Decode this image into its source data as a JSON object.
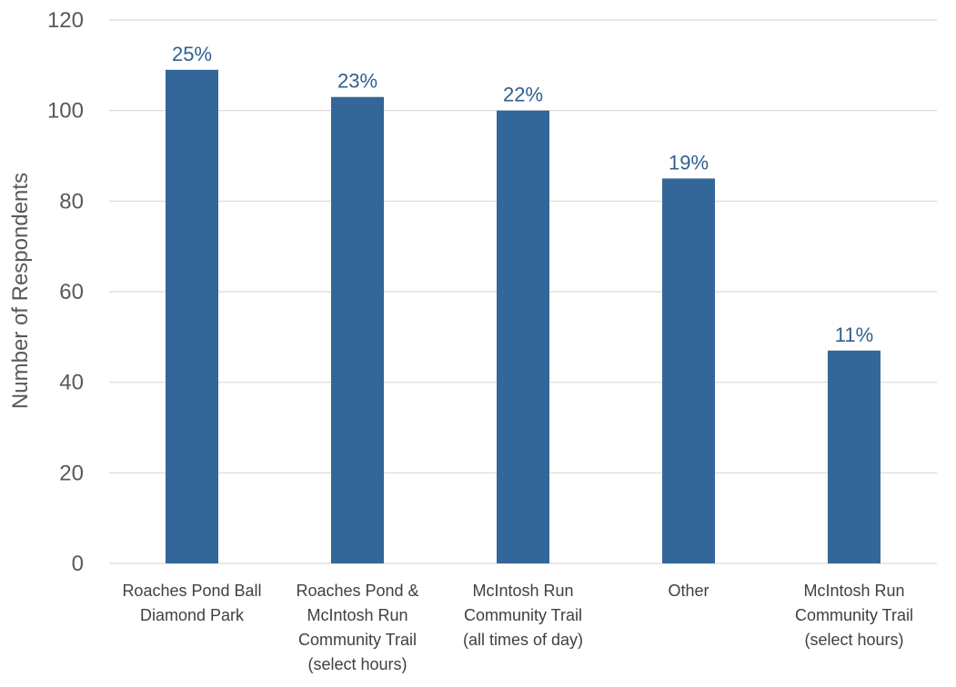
{
  "chart_data": {
    "type": "bar",
    "title": "",
    "xlabel": "",
    "ylabel": "Number of Respondents",
    "ylim": [
      0,
      120
    ],
    "yticks": [
      0,
      20,
      40,
      60,
      80,
      100,
      120
    ],
    "grid": true,
    "legend": "none",
    "categories": [
      [
        "Roaches Pond Ball",
        "Diamond Park"
      ],
      [
        "Roaches Pond &",
        "McIntosh Run",
        "Community Trail",
        "(select hours)"
      ],
      [
        "McIntosh Run",
        "Community Trail",
        "(all times of day)"
      ],
      [
        "Other"
      ],
      [
        "McIntosh Run",
        "Community Trail",
        "(select hours)"
      ]
    ],
    "values": [
      109,
      103,
      100,
      85,
      47
    ],
    "data_labels": [
      "25%",
      "23%",
      "22%",
      "19%",
      "11%"
    ],
    "colors": {
      "bar": "#336699",
      "data_label": "#2f5f8f",
      "grid": "#d9d9d9"
    }
  }
}
